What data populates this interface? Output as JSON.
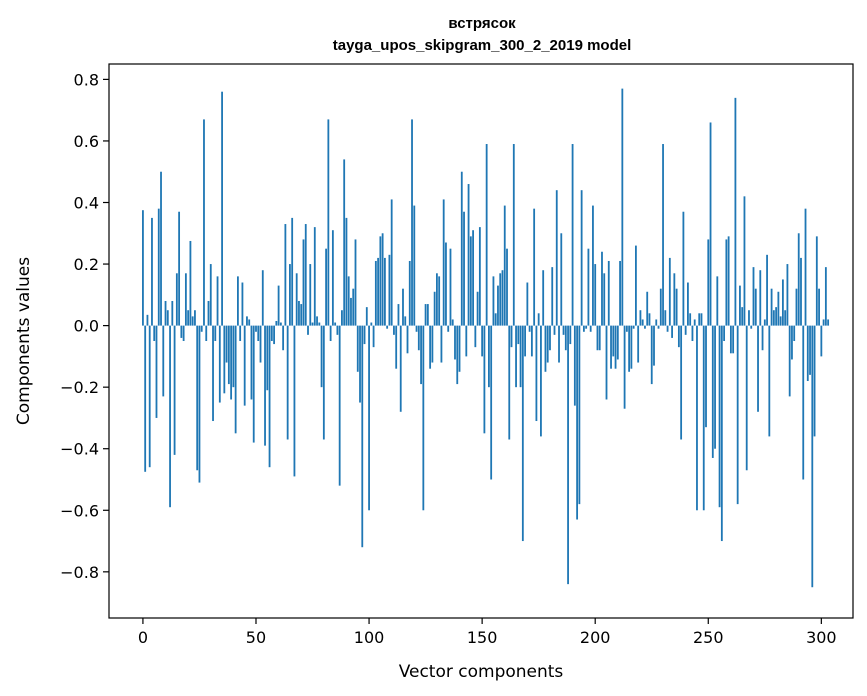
{
  "chart_data": {
    "type": "bar",
    "title": "встрясок",
    "subtitle": "tayga_upos_skipgram_300_2_2019 model",
    "xlabel": "Vector components",
    "ylabel": "Components values",
    "xlim": [
      -15,
      314
    ],
    "ylim": [
      -0.95,
      0.85
    ],
    "xticks": [
      0,
      50,
      100,
      150,
      200,
      250,
      300
    ],
    "yticks": [
      -0.8,
      -0.6,
      -0.4,
      -0.2,
      0.0,
      0.2,
      0.4,
      0.6,
      0.8
    ],
    "ytick_labels": [
      "−0.8",
      "−0.6",
      "−0.4",
      "−0.2",
      "0.0",
      "0.2",
      "0.4",
      "0.6",
      "0.8"
    ],
    "grid": false,
    "bar_color": "#1f77b4",
    "values": [
      0.375,
      -0.475,
      0.035,
      -0.46,
      0.35,
      -0.05,
      -0.3,
      0.38,
      0.5,
      -0.23,
      0.08,
      0.05,
      -0.59,
      0.08,
      -0.42,
      0.17,
      0.37,
      -0.04,
      -0.05,
      0.17,
      0.05,
      0.275,
      0.03,
      0.05,
      -0.47,
      -0.51,
      -0.02,
      0.67,
      -0.05,
      0.08,
      0.2,
      -0.31,
      -0.05,
      0.16,
      -0.25,
      0.76,
      -0.22,
      -0.12,
      -0.19,
      -0.24,
      -0.2,
      -0.35,
      0.16,
      -0.05,
      0.14,
      -0.26,
      0.03,
      0.02,
      -0.24,
      -0.38,
      -0.02,
      -0.05,
      -0.12,
      0.18,
      -0.39,
      -0.21,
      -0.46,
      -0.05,
      -0.06,
      0.015,
      0.13,
      0.01,
      -0.08,
      0.33,
      -0.37,
      0.2,
      0.35,
      -0.49,
      0.17,
      0.08,
      0.07,
      0.28,
      0.33,
      -0.03,
      0.2,
      0.01,
      0.32,
      0.03,
      0.01,
      -0.2,
      -0.37,
      0.25,
      0.67,
      -0.05,
      0.31,
      0.01,
      -0.03,
      -0.52,
      0.05,
      0.54,
      0.35,
      0.16,
      0.09,
      0.12,
      0.28,
      -0.15,
      -0.25,
      -0.72,
      -0.06,
      0.06,
      -0.6,
      0.01,
      -0.07,
      0.21,
      0.22,
      0.29,
      0.3,
      0.22,
      -0.01,
      0.23,
      0.41,
      -0.03,
      -0.14,
      0.07,
      -0.28,
      0.12,
      0.03,
      -0.09,
      0.21,
      0.67,
      0.39,
      -0.02,
      -0.08,
      -0.19,
      -0.6,
      0.07,
      0.07,
      -0.14,
      -0.12,
      0.11,
      0.17,
      0.16,
      -0.12,
      0.41,
      0.27,
      -0.02,
      0.25,
      0.02,
      -0.11,
      -0.19,
      -0.15,
      0.5,
      0.37,
      -0.1,
      0.46,
      0.29,
      0.31,
      -0.07,
      0.11,
      0.32,
      -0.1,
      -0.35,
      0.59,
      -0.2,
      -0.5,
      0.16,
      0.04,
      0.13,
      0.17,
      0.18,
      0.39,
      0.25,
      -0.37,
      -0.07,
      0.59,
      -0.2,
      -0.06,
      -0.2,
      -0.7,
      -0.1,
      0.14,
      -0.02,
      -0.1,
      0.38,
      -0.31,
      0.04,
      -0.36,
      0.18,
      -0.15,
      -0.12,
      -0.08,
      0.19,
      -0.03,
      0.44,
      -0.12,
      0.3,
      -0.03,
      -0.08,
      -0.84,
      -0.06,
      0.59,
      -0.26,
      -0.63,
      -0.58,
      0.44,
      -0.02,
      -0.01,
      0.25,
      -0.02,
      0.39,
      0.2,
      -0.08,
      -0.08,
      0.24,
      0.17,
      -0.24,
      0.21,
      -0.14,
      -0.1,
      -0.14,
      -0.11,
      0.21,
      0.77,
      -0.27,
      -0.02,
      -0.15,
      -0.14,
      -0.01,
      0.26,
      -0.12,
      0.05,
      0.02,
      -0.01,
      0.11,
      0.04,
      -0.19,
      -0.13,
      0.02,
      -0.01,
      0.12,
      0.59,
      0.05,
      -0.02,
      0.22,
      -0.04,
      0.17,
      0.12,
      -0.07,
      -0.37,
      0.37,
      -0.03,
      0.14,
      0.04,
      -0.05,
      0.02,
      -0.6,
      0.04,
      0.04,
      -0.6,
      -0.33,
      0.28,
      0.66,
      -0.43,
      -0.4,
      0.16,
      -0.59,
      -0.7,
      -0.05,
      0.28,
      0.29,
      -0.09,
      -0.09,
      0.74,
      -0.58,
      0.13,
      0.06,
      0.42,
      -0.47,
      0.05,
      -0.01,
      0.19,
      0.12,
      -0.28,
      0.18,
      -0.08,
      0.02,
      0.23,
      -0.36,
      0.12,
      0.05,
      0.06,
      0.11,
      0.03,
      0.15,
      0.05,
      0.2,
      -0.23,
      -0.11,
      -0.05,
      0.12,
      0.3,
      0.22,
      -0.5,
      0.38,
      -0.18,
      -0.16,
      -0.85,
      -0.36,
      0.29,
      0.12,
      -0.1,
      0.02,
      0.19,
      0.02
    ]
  }
}
